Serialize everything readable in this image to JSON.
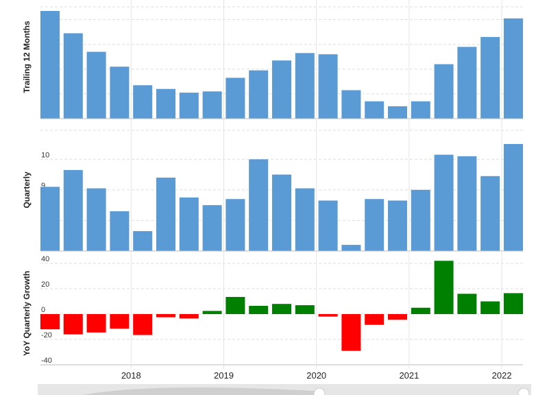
{
  "chart_data": [
    {
      "type": "bar",
      "ylabel": "Trailing 12 Months",
      "ylim": [
        32,
        40.7
      ],
      "yticks": [
        32,
        34,
        36,
        38,
        40
      ],
      "grid": true,
      "values": [
        40.7,
        38.9,
        37.4,
        36.2,
        34.7,
        34.4,
        34.1,
        34.2,
        35.3,
        35.9,
        36.7,
        37.3,
        37.2,
        34.3,
        33.4,
        33.0,
        33.4,
        36.4,
        37.8,
        38.6,
        40.1
      ],
      "colors": {
        "bar": "#5b9bd5"
      }
    },
    {
      "type": "bar",
      "ylabel": "Quarterly",
      "ylim": [
        7,
        10.5
      ],
      "yticks": [
        7,
        8,
        9,
        10
      ],
      "grid": true,
      "values": [
        9.1,
        9.65,
        9.05,
        8.3,
        7.65,
        9.4,
        8.75,
        8.5,
        8.7,
        10.0,
        9.5,
        9.05,
        8.65,
        7.2,
        8.7,
        8.65,
        9.0,
        10.15,
        10.1,
        9.45,
        10.5
      ],
      "colors": {
        "bar": "#5b9bd5"
      }
    },
    {
      "type": "bar",
      "ylabel": "YoY Quarterly Growth",
      "ylim": [
        -40,
        40
      ],
      "yticks": [
        -40,
        -20,
        0,
        20,
        40
      ],
      "grid": true,
      "values": [
        -12,
        -16,
        -14.5,
        -11.5,
        -16.5,
        -2.5,
        -3.5,
        2.5,
        13.5,
        6.5,
        8,
        7,
        -2,
        -29,
        -8.5,
        -4.5,
        5,
        42,
        16,
        10,
        16.5
      ],
      "colors": {
        "positive": "#008000",
        "negative": "#ff0000"
      }
    }
  ],
  "x_axis": {
    "years": [
      "2018",
      "2019",
      "2020",
      "2021",
      "2022"
    ],
    "year_bar_index": [
      4,
      8,
      12,
      16,
      20
    ]
  },
  "navigator": {
    "colors": {
      "background": "#e6e6e6",
      "handle": "#ffffff",
      "handle_border": "#cccccc"
    }
  }
}
